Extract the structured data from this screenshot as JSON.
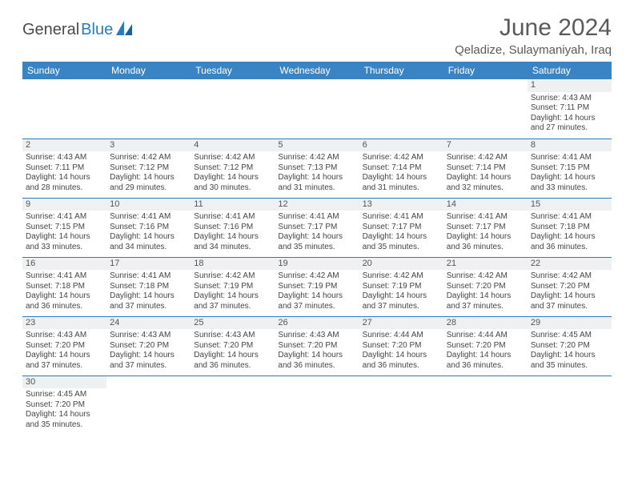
{
  "brand": {
    "general": "General",
    "blue": "Blue"
  },
  "title": "June 2024",
  "location": "Qeladize, Sulaymaniyah, Iraq",
  "colors": {
    "header_bg": "#3b84c4",
    "row_divider": "#2a7ac0",
    "daynum_bg": "#eef0f1",
    "text": "#333333",
    "title_text": "#5a5a5a"
  },
  "day_headers": [
    "Sunday",
    "Monday",
    "Tuesday",
    "Wednesday",
    "Thursday",
    "Friday",
    "Saturday"
  ],
  "grid": [
    [
      null,
      null,
      null,
      null,
      null,
      null,
      {
        "n": "1",
        "sunrise": "Sunrise: 4:43 AM",
        "sunset": "Sunset: 7:11 PM",
        "d1": "Daylight: 14 hours",
        "d2": "and 27 minutes."
      }
    ],
    [
      {
        "n": "2",
        "sunrise": "Sunrise: 4:43 AM",
        "sunset": "Sunset: 7:11 PM",
        "d1": "Daylight: 14 hours",
        "d2": "and 28 minutes."
      },
      {
        "n": "3",
        "sunrise": "Sunrise: 4:42 AM",
        "sunset": "Sunset: 7:12 PM",
        "d1": "Daylight: 14 hours",
        "d2": "and 29 minutes."
      },
      {
        "n": "4",
        "sunrise": "Sunrise: 4:42 AM",
        "sunset": "Sunset: 7:12 PM",
        "d1": "Daylight: 14 hours",
        "d2": "and 30 minutes."
      },
      {
        "n": "5",
        "sunrise": "Sunrise: 4:42 AM",
        "sunset": "Sunset: 7:13 PM",
        "d1": "Daylight: 14 hours",
        "d2": "and 31 minutes."
      },
      {
        "n": "6",
        "sunrise": "Sunrise: 4:42 AM",
        "sunset": "Sunset: 7:14 PM",
        "d1": "Daylight: 14 hours",
        "d2": "and 31 minutes."
      },
      {
        "n": "7",
        "sunrise": "Sunrise: 4:42 AM",
        "sunset": "Sunset: 7:14 PM",
        "d1": "Daylight: 14 hours",
        "d2": "and 32 minutes."
      },
      {
        "n": "8",
        "sunrise": "Sunrise: 4:41 AM",
        "sunset": "Sunset: 7:15 PM",
        "d1": "Daylight: 14 hours",
        "d2": "and 33 minutes."
      }
    ],
    [
      {
        "n": "9",
        "sunrise": "Sunrise: 4:41 AM",
        "sunset": "Sunset: 7:15 PM",
        "d1": "Daylight: 14 hours",
        "d2": "and 33 minutes."
      },
      {
        "n": "10",
        "sunrise": "Sunrise: 4:41 AM",
        "sunset": "Sunset: 7:16 PM",
        "d1": "Daylight: 14 hours",
        "d2": "and 34 minutes."
      },
      {
        "n": "11",
        "sunrise": "Sunrise: 4:41 AM",
        "sunset": "Sunset: 7:16 PM",
        "d1": "Daylight: 14 hours",
        "d2": "and 34 minutes."
      },
      {
        "n": "12",
        "sunrise": "Sunrise: 4:41 AM",
        "sunset": "Sunset: 7:17 PM",
        "d1": "Daylight: 14 hours",
        "d2": "and 35 minutes."
      },
      {
        "n": "13",
        "sunrise": "Sunrise: 4:41 AM",
        "sunset": "Sunset: 7:17 PM",
        "d1": "Daylight: 14 hours",
        "d2": "and 35 minutes."
      },
      {
        "n": "14",
        "sunrise": "Sunrise: 4:41 AM",
        "sunset": "Sunset: 7:17 PM",
        "d1": "Daylight: 14 hours",
        "d2": "and 36 minutes."
      },
      {
        "n": "15",
        "sunrise": "Sunrise: 4:41 AM",
        "sunset": "Sunset: 7:18 PM",
        "d1": "Daylight: 14 hours",
        "d2": "and 36 minutes."
      }
    ],
    [
      {
        "n": "16",
        "sunrise": "Sunrise: 4:41 AM",
        "sunset": "Sunset: 7:18 PM",
        "d1": "Daylight: 14 hours",
        "d2": "and 36 minutes."
      },
      {
        "n": "17",
        "sunrise": "Sunrise: 4:41 AM",
        "sunset": "Sunset: 7:18 PM",
        "d1": "Daylight: 14 hours",
        "d2": "and 37 minutes."
      },
      {
        "n": "18",
        "sunrise": "Sunrise: 4:42 AM",
        "sunset": "Sunset: 7:19 PM",
        "d1": "Daylight: 14 hours",
        "d2": "and 37 minutes."
      },
      {
        "n": "19",
        "sunrise": "Sunrise: 4:42 AM",
        "sunset": "Sunset: 7:19 PM",
        "d1": "Daylight: 14 hours",
        "d2": "and 37 minutes."
      },
      {
        "n": "20",
        "sunrise": "Sunrise: 4:42 AM",
        "sunset": "Sunset: 7:19 PM",
        "d1": "Daylight: 14 hours",
        "d2": "and 37 minutes."
      },
      {
        "n": "21",
        "sunrise": "Sunrise: 4:42 AM",
        "sunset": "Sunset: 7:20 PM",
        "d1": "Daylight: 14 hours",
        "d2": "and 37 minutes."
      },
      {
        "n": "22",
        "sunrise": "Sunrise: 4:42 AM",
        "sunset": "Sunset: 7:20 PM",
        "d1": "Daylight: 14 hours",
        "d2": "and 37 minutes."
      }
    ],
    [
      {
        "n": "23",
        "sunrise": "Sunrise: 4:43 AM",
        "sunset": "Sunset: 7:20 PM",
        "d1": "Daylight: 14 hours",
        "d2": "and 37 minutes."
      },
      {
        "n": "24",
        "sunrise": "Sunrise: 4:43 AM",
        "sunset": "Sunset: 7:20 PM",
        "d1": "Daylight: 14 hours",
        "d2": "and 37 minutes."
      },
      {
        "n": "25",
        "sunrise": "Sunrise: 4:43 AM",
        "sunset": "Sunset: 7:20 PM",
        "d1": "Daylight: 14 hours",
        "d2": "and 36 minutes."
      },
      {
        "n": "26",
        "sunrise": "Sunrise: 4:43 AM",
        "sunset": "Sunset: 7:20 PM",
        "d1": "Daylight: 14 hours",
        "d2": "and 36 minutes."
      },
      {
        "n": "27",
        "sunrise": "Sunrise: 4:44 AM",
        "sunset": "Sunset: 7:20 PM",
        "d1": "Daylight: 14 hours",
        "d2": "and 36 minutes."
      },
      {
        "n": "28",
        "sunrise": "Sunrise: 4:44 AM",
        "sunset": "Sunset: 7:20 PM",
        "d1": "Daylight: 14 hours",
        "d2": "and 36 minutes."
      },
      {
        "n": "29",
        "sunrise": "Sunrise: 4:45 AM",
        "sunset": "Sunset: 7:20 PM",
        "d1": "Daylight: 14 hours",
        "d2": "and 35 minutes."
      }
    ],
    [
      {
        "n": "30",
        "sunrise": "Sunrise: 4:45 AM",
        "sunset": "Sunset: 7:20 PM",
        "d1": "Daylight: 14 hours",
        "d2": "and 35 minutes."
      },
      null,
      null,
      null,
      null,
      null,
      null
    ]
  ]
}
